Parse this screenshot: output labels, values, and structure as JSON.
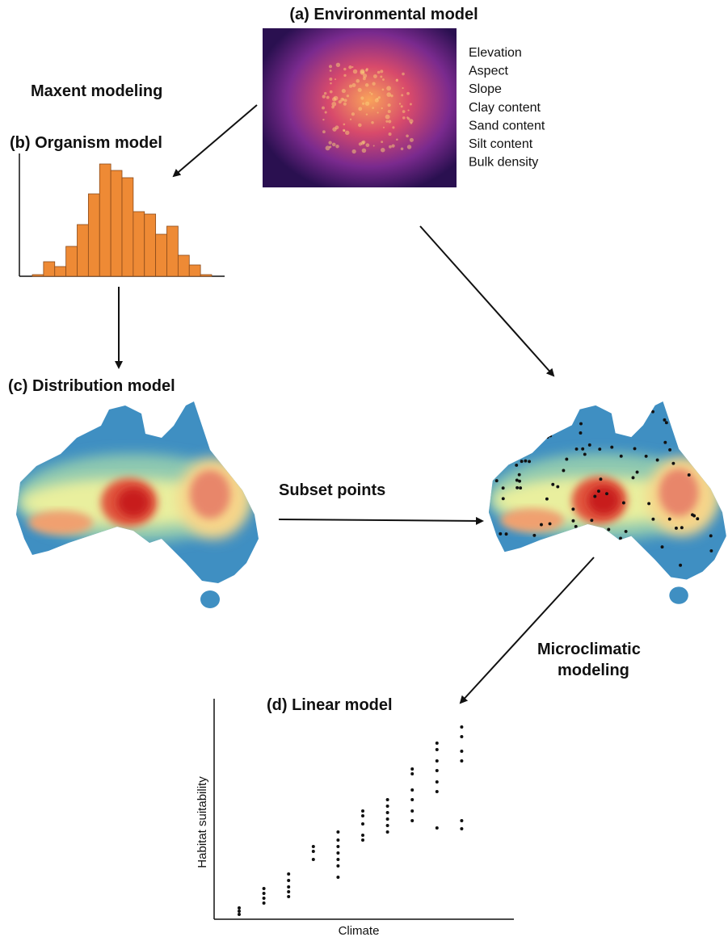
{
  "panel_a": {
    "title": "(a) Environmental model",
    "variables": [
      "Elevation",
      "Aspect",
      "Slope",
      "Clay content",
      "Sand content",
      "Silt content",
      "Bulk density"
    ]
  },
  "labels": {
    "maxent": "Maxent modeling",
    "subset": "Subset points",
    "microclimatic": [
      "Microclimatic",
      "modeling"
    ]
  },
  "panel_b": {
    "title": "(b) Organism model"
  },
  "panel_c": {
    "title": "(c) Distribution model"
  },
  "panel_d": {
    "title": "(d) Linear model",
    "y_label": "Habitat suitability",
    "x_label": "Climate"
  }
}
